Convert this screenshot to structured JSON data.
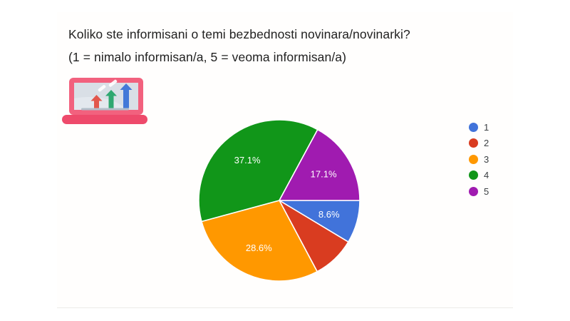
{
  "slide": {
    "background_color": "#ffffff",
    "card_background_color": "#fffefd"
  },
  "question": {
    "line1": "Koliko ste informisani o temi bezbednosti novinara/novinarki?",
    "line2": "(1 = nimalo informisan/a, 5 = veoma informisan/a)"
  },
  "decorations": {
    "icon": "laptop-with-rising-arrow-bar-chart",
    "laptop_frame_color": "#f2617e",
    "laptop_base_color": "#ee4a6b",
    "laptop_screen_color": "#d9dfe6",
    "icon_arrow_colors": [
      "#e2574c",
      "#2fa871",
      "#4379d8"
    ]
  },
  "chart_data": {
    "type": "pie",
    "categories": [
      "1",
      "2",
      "3",
      "4",
      "5"
    ],
    "values": [
      8.6,
      8.6,
      28.6,
      37.1,
      17.1
    ],
    "slice_labels": [
      "8.6%",
      "",
      "28.6%",
      "37.1%",
      "17.1%"
    ],
    "colors": [
      "#4173da",
      "#d93c20",
      "#ff9800",
      "#119619",
      "#a01bb0"
    ],
    "label_color": "#ffffff",
    "legend_position": "right",
    "start_angle_deg": 90,
    "separator_color": "#ffffff"
  }
}
